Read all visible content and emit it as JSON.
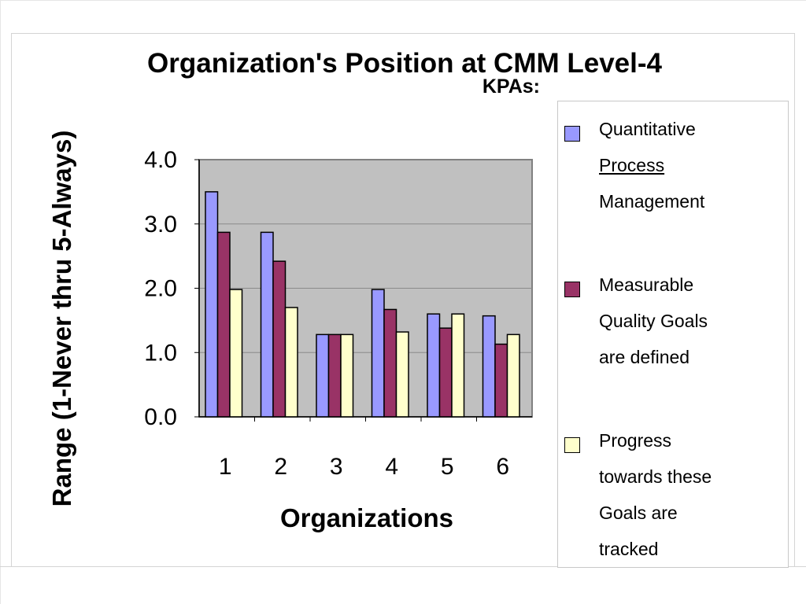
{
  "chart_data": {
    "type": "bar",
    "title": "Organization's Position at CMM Level-4",
    "legend_title": "KPAs:",
    "xlabel": "Organizations",
    "ylabel": "Range (1-Never thru 5-Always)",
    "categories": [
      "1",
      "2",
      "3",
      "4",
      "5",
      "6"
    ],
    "y_ticks": [
      "0.0",
      "1.0",
      "2.0",
      "3.0",
      "4.0"
    ],
    "ylim": [
      0,
      4
    ],
    "grid": true,
    "legend_position": "right",
    "plot_background": "#c0c0c0",
    "series": [
      {
        "name": "Quantitative Process Management",
        "legend_lines": [
          "Quantitative",
          "Process",
          "Management"
        ],
        "color": "#9999ff",
        "values": [
          3.5,
          2.87,
          1.28,
          1.98,
          1.6,
          1.57
        ]
      },
      {
        "name": "Measurable Quality Goals are defined",
        "legend_lines": [
          "Measurable",
          "Quality Goals",
          "are defined"
        ],
        "color": "#993366",
        "values": [
          2.87,
          2.42,
          1.28,
          1.67,
          1.38,
          1.13
        ]
      },
      {
        "name": "Progress towards these Goals are tracked",
        "legend_lines": [
          "Progress",
          "towards these",
          "Goals are",
          "tracked"
        ],
        "color": "#ffffcc",
        "values": [
          1.98,
          1.7,
          1.28,
          1.32,
          1.6,
          1.28
        ]
      }
    ]
  }
}
